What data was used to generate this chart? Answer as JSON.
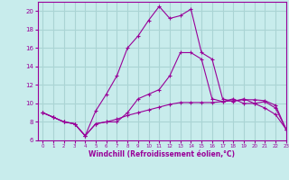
{
  "xlabel": "Windchill (Refroidissement éolien,°C)",
  "background_color": "#c8ecec",
  "grid_color": "#aad4d4",
  "line_color": "#990099",
  "xlim": [
    -0.5,
    23
  ],
  "ylim": [
    6,
    21
  ],
  "yticks": [
    6,
    8,
    10,
    12,
    14,
    16,
    18,
    20
  ],
  "xticks": [
    0,
    1,
    2,
    3,
    4,
    5,
    6,
    7,
    8,
    9,
    10,
    11,
    12,
    13,
    14,
    15,
    16,
    17,
    18,
    19,
    20,
    21,
    22,
    23
  ],
  "line1_x": [
    0,
    1,
    2,
    3,
    4,
    5,
    6,
    7,
    8,
    9,
    10,
    11,
    12,
    13,
    14,
    15,
    16,
    17,
    18,
    19,
    20,
    21,
    22,
    23
  ],
  "line1_y": [
    9.0,
    8.5,
    8.0,
    7.8,
    6.5,
    7.8,
    8.0,
    8.0,
    9.0,
    10.5,
    11.0,
    11.5,
    13.0,
    15.5,
    15.5,
    14.8,
    10.5,
    10.2,
    10.5,
    10.0,
    10.0,
    9.5,
    8.8,
    7.2
  ],
  "line2_x": [
    0,
    1,
    2,
    3,
    4,
    5,
    6,
    7,
    8,
    9,
    10,
    11,
    12,
    13,
    14,
    15,
    16,
    17,
    18,
    19,
    20,
    21,
    22,
    23
  ],
  "line2_y": [
    9.0,
    8.5,
    8.0,
    7.8,
    6.5,
    9.2,
    11.0,
    13.0,
    16.0,
    17.3,
    19.0,
    20.5,
    19.2,
    19.5,
    20.2,
    15.5,
    14.8,
    10.5,
    10.2,
    10.5,
    10.0,
    10.2,
    9.5,
    7.2
  ],
  "line3_x": [
    0,
    1,
    2,
    3,
    4,
    5,
    6,
    7,
    8,
    9,
    10,
    11,
    12,
    13,
    14,
    15,
    16,
    17,
    18,
    19,
    20,
    21,
    22,
    23
  ],
  "line3_y": [
    9.0,
    8.5,
    8.0,
    7.8,
    6.5,
    7.8,
    8.0,
    8.3,
    8.7,
    9.0,
    9.3,
    9.6,
    9.9,
    10.1,
    10.1,
    10.1,
    10.1,
    10.2,
    10.3,
    10.4,
    10.4,
    10.3,
    9.8,
    7.2
  ]
}
